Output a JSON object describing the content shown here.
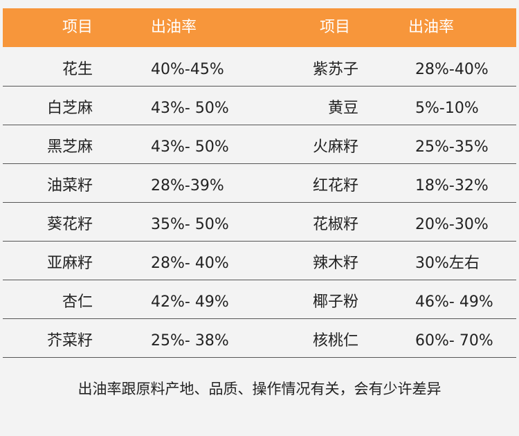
{
  "table": {
    "header": [
      "项目",
      "出油率",
      "项目",
      "出油率"
    ],
    "rows": [
      [
        "花生",
        "40%-45%",
        "紫苏子",
        "28%-40%"
      ],
      [
        "白芝麻",
        "43%- 50%",
        "黄豆",
        "5%-10%"
      ],
      [
        "黑芝麻",
        "43%- 50%",
        "火麻籽",
        "25%-35%"
      ],
      [
        "油菜籽",
        "28%-39%",
        "红花籽",
        "18%-32%"
      ],
      [
        "葵花籽",
        "35%- 50%",
        "花椒籽",
        "20%-30%"
      ],
      [
        "亚麻籽",
        "28%- 40%",
        "辣木籽",
        "30%左右"
      ],
      [
        "杏仁",
        "42%- 49%",
        "椰子粉",
        "46%- 49%"
      ],
      [
        "芥菜籽",
        "25%- 38%",
        "核桃仁",
        "60%- 70%"
      ]
    ],
    "footnote": "出油率跟原料产地、品质、操作情况有关，会有少许差异"
  }
}
